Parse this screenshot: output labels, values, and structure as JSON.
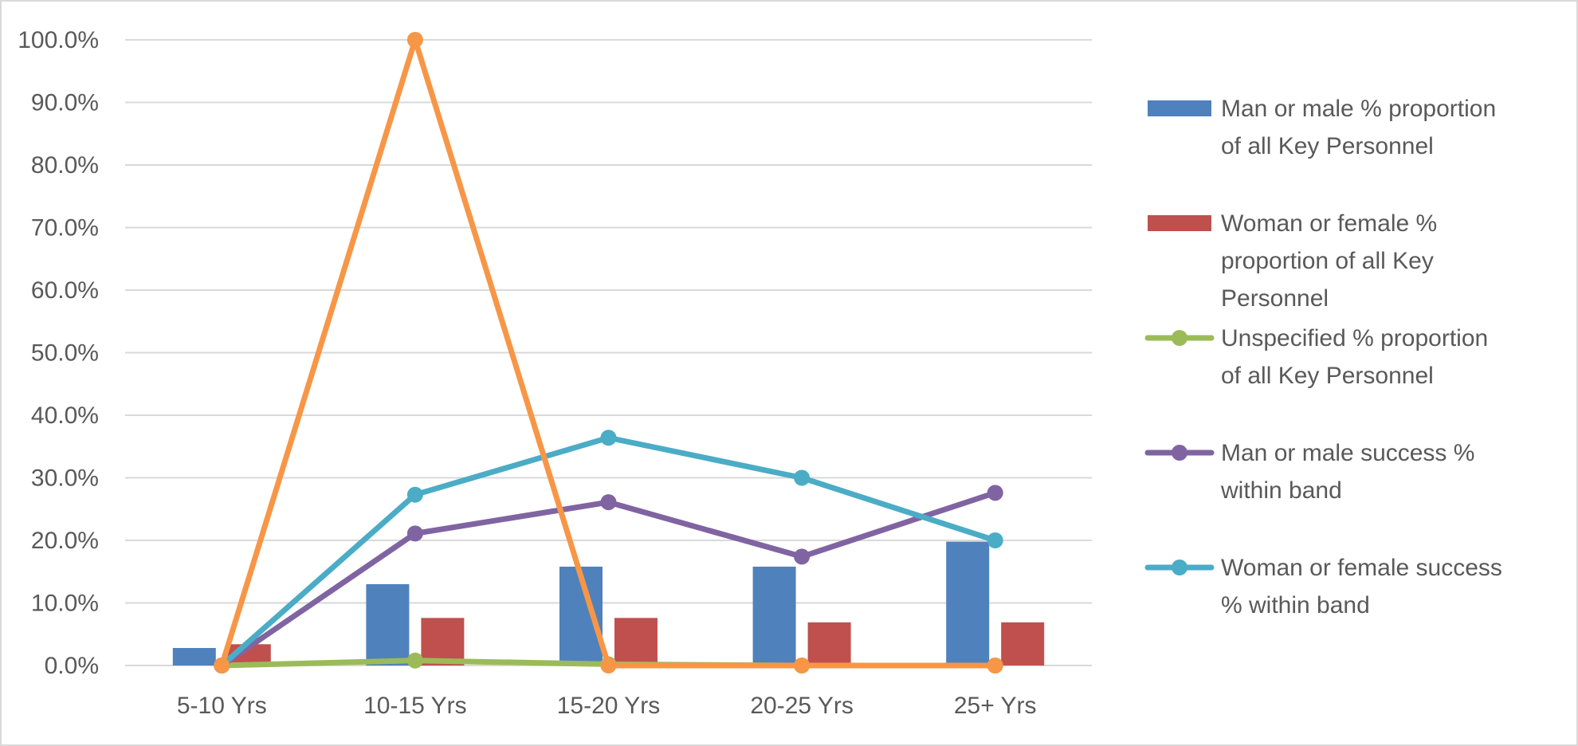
{
  "chart_data": {
    "type": "bar",
    "categories": [
      "5-10 Yrs",
      "10-15 Yrs",
      "15-20 Yrs",
      "20-25 Yrs",
      "25+ Yrs"
    ],
    "ylim": [
      0,
      100
    ],
    "y_tick_values": [
      0,
      10,
      20,
      30,
      40,
      50,
      60,
      70,
      80,
      90,
      100
    ],
    "y_tick_labels": [
      "0.0%",
      "10.0%",
      "20.0%",
      "30.0%",
      "40.0%",
      "50.0%",
      "60.0%",
      "70.0%",
      "80.0%",
      "90.0%",
      "100.0%"
    ],
    "grid": true,
    "legend_position": "right",
    "series": [
      {
        "name": "Man or male % proportion of all Key Personnel",
        "kind": "bar",
        "color": "#4f81bd",
        "values": [
          2.8,
          13.0,
          15.8,
          15.8,
          19.8
        ],
        "legend_lines": [
          "Man or male % proportion",
          "of all Key Personnel"
        ]
      },
      {
        "name": "Woman or female % proportion of all Key Personnel",
        "kind": "bar",
        "color": "#c0504d",
        "values": [
          3.4,
          7.6,
          7.6,
          6.9,
          6.9
        ],
        "legend_lines": [
          "Woman or female %",
          "proportion of all Key",
          "Personnel"
        ]
      },
      {
        "name": "Unspecified % proportion of all Key Personnel",
        "kind": "line",
        "color": "#9bbb59",
        "values": [
          0.0,
          0.8,
          0.2,
          0.0,
          0.0
        ],
        "legend_lines": [
          "Unspecified % proportion",
          "of all Key Personnel"
        ]
      },
      {
        "name": "Man or male success % within band",
        "kind": "line",
        "color": "#8064a2",
        "values": [
          0.0,
          21.1,
          26.1,
          17.4,
          27.6
        ],
        "legend_lines": [
          "Man or male success %",
          "within band"
        ]
      },
      {
        "name": "Woman or female success % within band",
        "kind": "line",
        "color": "#4bacc6",
        "values": [
          0.0,
          27.3,
          36.4,
          30.0,
          20.0
        ],
        "legend_lines": [
          "Woman or female success",
          "% within band"
        ]
      },
      {
        "name": "",
        "kind": "line",
        "color": "#f79646",
        "values": [
          0.0,
          100.0,
          0.0,
          0.0,
          0.0
        ],
        "legend_lines": []
      }
    ]
  }
}
